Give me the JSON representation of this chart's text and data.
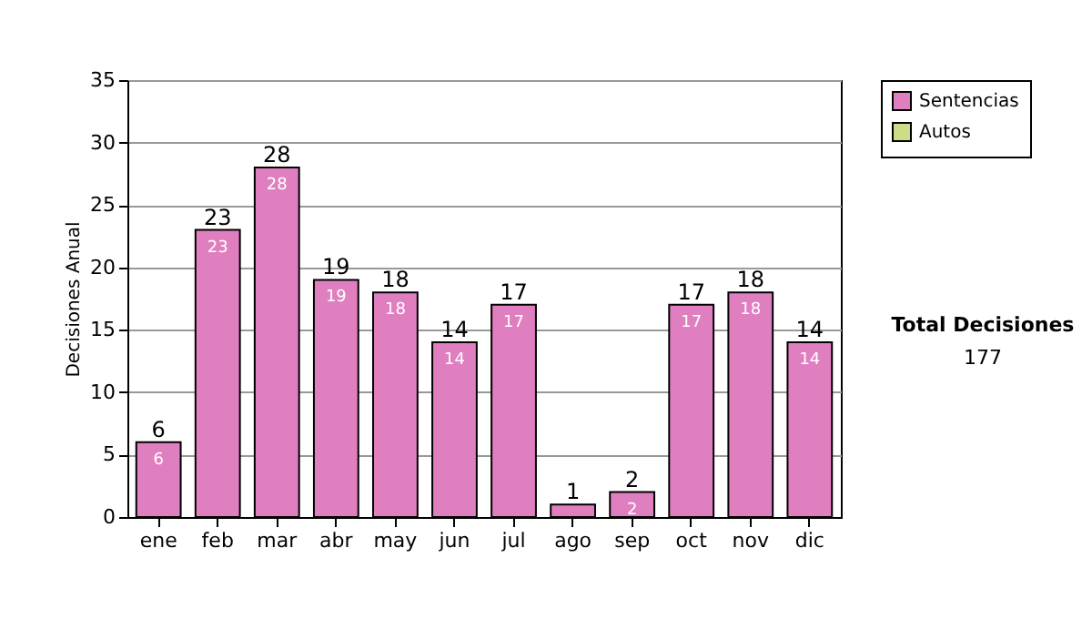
{
  "chart_data": {
    "type": "bar",
    "ylabel": "Decisiones Anual",
    "categories": [
      "ene",
      "feb",
      "mar",
      "abr",
      "may",
      "jun",
      "jul",
      "ago",
      "sep",
      "oct",
      "nov",
      "dic"
    ],
    "series": [
      {
        "name": "Sentencias",
        "color": "#e07fc0",
        "values": [
          6,
          23,
          28,
          19,
          18,
          14,
          17,
          1,
          2,
          17,
          18,
          14
        ],
        "value_labels": [
          "6",
          "23",
          "28",
          "19",
          "18",
          "14",
          "17",
          null,
          "2",
          "17",
          "18",
          "14"
        ]
      },
      {
        "name": "Autos",
        "color": "#ccdd88",
        "values": [
          null,
          null,
          null,
          null,
          null,
          null,
          null,
          null,
          null,
          null,
          null,
          null
        ]
      }
    ],
    "totals": [
      "6",
      "23",
      "28",
      "19",
      "18",
      "14",
      "17",
      "1",
      "2",
      "17",
      "18",
      "14"
    ],
    "ylim": [
      0,
      35
    ],
    "yticks": [
      0,
      5,
      10,
      15,
      20,
      25,
      30,
      35
    ],
    "grid": "y",
    "legend": "right",
    "annotations": [
      "Total Decisiones",
      "177"
    ]
  }
}
